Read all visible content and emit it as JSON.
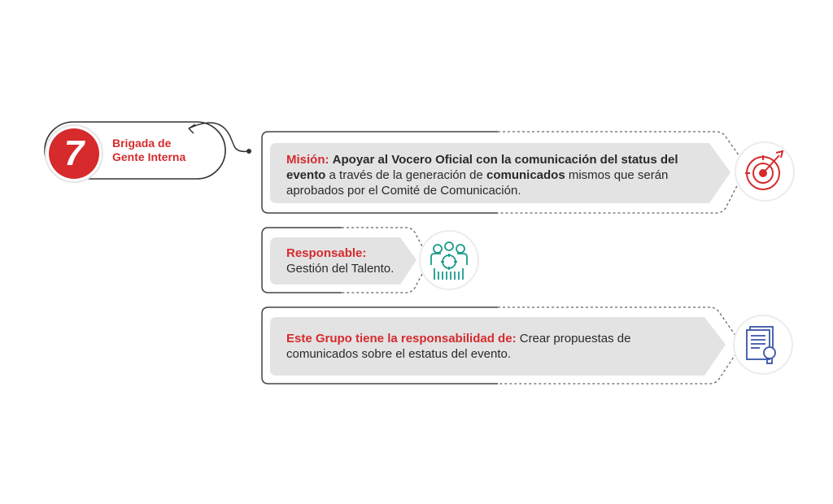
{
  "brigade": {
    "number": "7",
    "title_line1": "Brigada de",
    "title_line2": "Gente Interna"
  },
  "mission": {
    "label": "Misión:",
    "text_bold_1": "Apoyar al Vocero Oficial con la comunicación del status del",
    "text_bold_2": "evento",
    "text_normal_1": " a través de la generación de ",
    "text_bold_3": "comunicados",
    "text_normal_2": " mismos que serán",
    "text_line3": "aprobados por el Comité de Comunicación.",
    "icon": "target-icon"
  },
  "responsible": {
    "label": "Responsable:",
    "value": "Gestión del Talento.",
    "icon": "team-icon"
  },
  "responsibility": {
    "label": "Este Grupo tiene la responsabilidad de:",
    "text_1": " Crear propuestas de",
    "text_2": "comunicados sobre el estatus del evento.",
    "icon": "document-idea-icon"
  },
  "colors": {
    "accent_red": "#d52b2e",
    "teal": "#1a9a8a",
    "blue": "#3a54a8",
    "panel_gray": "#e3e3e3"
  }
}
